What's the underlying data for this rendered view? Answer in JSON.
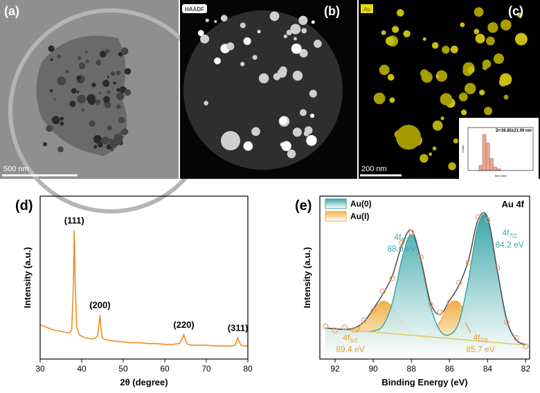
{
  "panels": {
    "a": {
      "label": "(a)",
      "scale_bar": "500 nm"
    },
    "b": {
      "label": "(b)",
      "badge": "HAADF"
    },
    "c": {
      "label": "(c)",
      "badge": "Au",
      "scale_bar": "200 nm"
    }
  },
  "chart_data": [
    {
      "type": "line",
      "panel_label": "(d)",
      "xlabel": "2θ (degree)",
      "ylabel": "Intensity (a.u.)",
      "xlim": [
        30,
        80
      ],
      "xticks": [
        30,
        40,
        50,
        60,
        70,
        80
      ],
      "ylim": [
        0,
        100
      ],
      "x": [
        30,
        31,
        32,
        33,
        34,
        35,
        36,
        37,
        37.6,
        38.0,
        38.2,
        38.4,
        38.8,
        39.4,
        40,
        41,
        42,
        43,
        43.8,
        44.2,
        44.4,
        44.6,
        45,
        45.6,
        46.5,
        48,
        50,
        52,
        54,
        56,
        58,
        60,
        62,
        63.6,
        64.3,
        64.6,
        64.9,
        65.5,
        66.5,
        68,
        70,
        72,
        74,
        76,
        77,
        77.3,
        77.6,
        77.9,
        78.4,
        79,
        80
      ],
      "series": [
        {
          "kind": "line",
          "color": "#f28c1e",
          "values": [
            21,
            20,
            19,
            18,
            17.5,
            17,
            16.5,
            16,
            18,
            45,
            79,
            50,
            20,
            15,
            14,
            13,
            12.5,
            12.5,
            14,
            22,
            27,
            20,
            13,
            12,
            11.5,
            11,
            10.5,
            10,
            10,
            9.5,
            9.5,
            9,
            9,
            9.5,
            13,
            15,
            12,
            9,
            8.5,
            8.5,
            8.5,
            8,
            8,
            8,
            8.5,
            11,
            13,
            10.5,
            8.5,
            8,
            8
          ]
        }
      ],
      "annotations": [
        {
          "text": "(111)",
          "x": 38.2
        },
        {
          "text": "(200)",
          "x": 44.4
        },
        {
          "text": "(220)",
          "x": 64.6
        },
        {
          "text": "(311)",
          "x": 77.6
        }
      ]
    },
    {
      "type": "line",
      "panel_label": "(e)",
      "title": "Au 4f",
      "xlabel": "Binding Energy (eV)",
      "ylabel": "Intensity (a.u.)",
      "xlim": [
        92.8,
        81.8
      ],
      "xticks": [
        92,
        90,
        88,
        86,
        84,
        82
      ],
      "ylim": [
        0,
        92
      ],
      "smooth": true,
      "legend": "upper-left",
      "x": [
        92.5,
        92,
        91.5,
        91,
        90.5,
        90,
        89.5,
        89,
        88.5,
        88,
        87.5,
        87,
        86.5,
        86,
        85.5,
        85,
        84.5,
        84,
        83.5,
        83,
        82.5,
        82
      ],
      "series": [
        {
          "kind": "area",
          "name": "Au(I)",
          "color": "#f0b045",
          "values": [
            17.5,
            17.1,
            16.8,
            17.5,
            20.9,
            27.8,
            32.6,
            29.6,
            21.8,
            15.8,
            13.7,
            14.6,
            21.0,
            31.0,
            31.9,
            21.8,
            13.2,
            10.2,
            9.3,
            8.8,
            8.4,
            7.9
          ]
        },
        {
          "kind": "area",
          "name": "Au(0)",
          "color": "#3aa6a8",
          "values": [
            17.5,
            17.1,
            16.6,
            16.2,
            15.7,
            15.8,
            18.8,
            31.7,
            56.3,
            70.4,
            55.4,
            29.9,
            16.1,
            13.7,
            21.0,
            44.9,
            75.8,
            79.4,
            50.2,
            22.1,
            10.8,
            8.1
          ]
        },
        {
          "kind": "line",
          "color": "#e9c766",
          "values": [
            17.5,
            17.1,
            16.6,
            16.2,
            15.7,
            15.3,
            14.8,
            14.3,
            13.9,
            13.4,
            13.0,
            12.5,
            12.0,
            11.6,
            11.1,
            10.7,
            10.2,
            9.8,
            9.3,
            8.8,
            8.4,
            7.9
          ]
        },
        {
          "kind": "line",
          "color": "#555555",
          "values": [
            17.5,
            17.1,
            16.8,
            17.5,
            20.9,
            28.3,
            36.6,
            47.0,
            64.2,
            72.8,
            56.1,
            32.0,
            25.1,
            33.1,
            41.8,
            56.0,
            78.8,
            79.8,
            50.2,
            22.1,
            10.8,
            8.1
          ]
        },
        {
          "kind": "scatter",
          "color": "#e8a070",
          "values": [
            18.5,
            16.2,
            17.9,
            16.5,
            22.0,
            27.1,
            38.2,
            45.6,
            65.8,
            71.5,
            57.4,
            30.8,
            26.3,
            32.0,
            43.2,
            54.7,
            80.1,
            78.6,
            51.5,
            21.0,
            11.9,
            7.2
          ]
        }
      ],
      "annotations": [
        {
          "orbital": "4f",
          "sub": "5/2",
          "energy": "88.0 eV",
          "color": "#3aa6a8"
        },
        {
          "orbital": "4f",
          "sub": "7/2",
          "energy": "84.2 eV",
          "color": "#3aa6a8"
        },
        {
          "orbital": "4f",
          "sub": "5/2",
          "energy": "89.4 eV",
          "color": "#e0a030"
        },
        {
          "orbital": "4f",
          "sub": "7/2",
          "energy": "85.7 eV",
          "color": "#e0a030"
        }
      ]
    },
    {
      "type": "histogram",
      "title": "D=39.85±21.09 nm",
      "xlabel": "Size (nm)",
      "ylabel": "Count",
      "xlim": [
        -20,
        160
      ],
      "ylim": [
        0,
        25
      ],
      "color": "#e8a890",
      "bins": [
        10,
        20,
        30,
        40,
        50,
        60,
        70
      ],
      "values": [
        3,
        21,
        16,
        7,
        2,
        1
      ]
    }
  ]
}
